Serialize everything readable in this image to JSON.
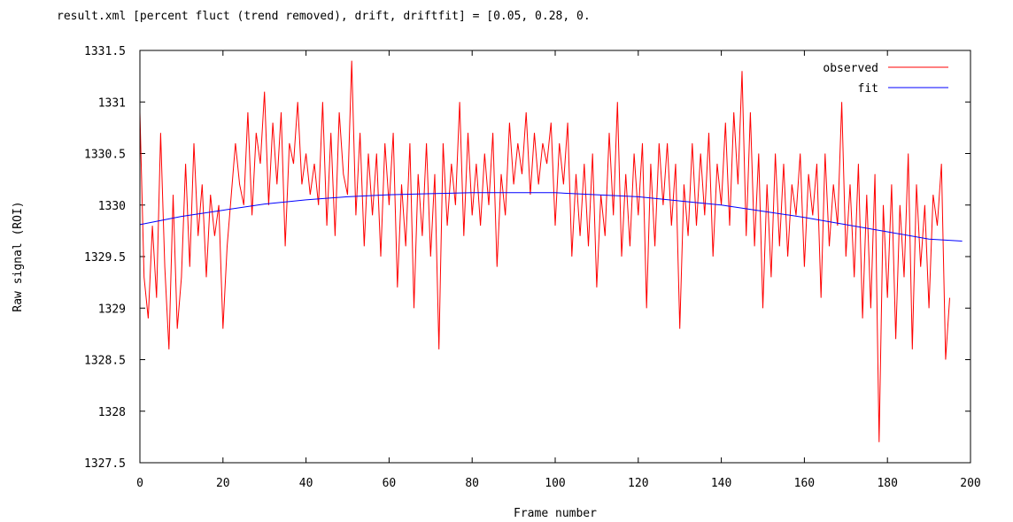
{
  "chart_data": {
    "type": "line",
    "title": "result.xml  [percent fluct (trend removed), drift, driftfit] = [0.05, 0.28, 0.",
    "xlabel": "Frame number",
    "ylabel": "Raw signal (ROI)",
    "xlim": [
      0,
      200
    ],
    "ylim": [
      1327.5,
      1331.5
    ],
    "x_ticks": [
      0,
      20,
      40,
      60,
      80,
      100,
      120,
      140,
      160,
      180,
      200
    ],
    "y_ticks": [
      1327.5,
      1328,
      1328.5,
      1329,
      1329.5,
      1330,
      1330.5,
      1331,
      1331.5
    ],
    "x_tick_labels": [
      "0",
      "20",
      "40",
      "60",
      "80",
      "100",
      "120",
      "140",
      "160",
      "180",
      "200"
    ],
    "y_tick_labels": [
      "1327.5",
      "1328",
      "1328.5",
      "1329",
      "1329.5",
      "1330",
      "1330.5",
      "1331",
      "1331.5"
    ],
    "grid": false,
    "legend_position": "top-right",
    "series": [
      {
        "name": "observed",
        "color": "#ff0000",
        "values": [
          1330.9,
          1329.3,
          1328.9,
          1329.8,
          1329.1,
          1330.7,
          1329.4,
          1328.6,
          1330.1,
          1328.8,
          1329.3,
          1330.4,
          1329.4,
          1330.6,
          1329.7,
          1330.2,
          1329.3,
          1330.1,
          1329.7,
          1330.0,
          1328.8,
          1329.6,
          1330.1,
          1330.6,
          1330.2,
          1330.0,
          1330.9,
          1329.9,
          1330.7,
          1330.4,
          1331.1,
          1330.0,
          1330.8,
          1330.2,
          1330.9,
          1329.6,
          1330.6,
          1330.4,
          1331.0,
          1330.2,
          1330.5,
          1330.1,
          1330.4,
          1330.0,
          1331.0,
          1329.8,
          1330.7,
          1329.7,
          1330.9,
          1330.3,
          1330.1,
          1331.4,
          1329.9,
          1330.7,
          1329.6,
          1330.5,
          1329.9,
          1330.5,
          1329.5,
          1330.6,
          1330.0,
          1330.7,
          1329.2,
          1330.2,
          1329.6,
          1330.6,
          1329.0,
          1330.3,
          1329.7,
          1330.6,
          1329.5,
          1330.3,
          1328.6,
          1330.6,
          1329.8,
          1330.4,
          1330.0,
          1331.0,
          1329.7,
          1330.7,
          1329.9,
          1330.4,
          1329.8,
          1330.5,
          1330.0,
          1330.7,
          1329.4,
          1330.3,
          1329.9,
          1330.8,
          1330.2,
          1330.6,
          1330.3,
          1330.9,
          1330.1,
          1330.7,
          1330.2,
          1330.6,
          1330.4,
          1330.8,
          1329.8,
          1330.6,
          1330.2,
          1330.8,
          1329.5,
          1330.3,
          1329.7,
          1330.4,
          1329.6,
          1330.5,
          1329.2,
          1330.1,
          1329.7,
          1330.7,
          1329.9,
          1331.0,
          1329.5,
          1330.3,
          1329.6,
          1330.5,
          1329.9,
          1330.6,
          1329.0,
          1330.4,
          1329.6,
          1330.6,
          1330.0,
          1330.6,
          1329.8,
          1330.4,
          1328.8,
          1330.2,
          1329.7,
          1330.6,
          1329.8,
          1330.5,
          1329.9,
          1330.7,
          1329.5,
          1330.4,
          1330.0,
          1330.8,
          1329.8,
          1330.9,
          1330.2,
          1331.3,
          1329.7,
          1330.9,
          1329.6,
          1330.5,
          1329.0,
          1330.2,
          1329.3,
          1330.5,
          1329.6,
          1330.4,
          1329.5,
          1330.2,
          1329.9,
          1330.5,
          1329.4,
          1330.3,
          1329.9,
          1330.4,
          1329.1,
          1330.5,
          1329.6,
          1330.2,
          1329.8,
          1331.0,
          1329.5,
          1330.2,
          1329.3,
          1330.4,
          1328.9,
          1330.1,
          1329.0,
          1330.3,
          1327.7,
          1330.0,
          1329.1,
          1330.2,
          1328.7,
          1330.0,
          1329.3,
          1330.5,
          1328.6,
          1330.2,
          1329.4,
          1330.0,
          1329.0,
          1330.1,
          1329.8,
          1330.4,
          1328.5,
          1329.1
        ],
        "x_start": 0
      },
      {
        "name": "fit",
        "color": "#0000ff",
        "x": [
          0,
          10,
          20,
          30,
          40,
          50,
          60,
          70,
          80,
          90,
          100,
          110,
          120,
          130,
          140,
          150,
          160,
          170,
          180,
          190,
          198
        ],
        "values": [
          1329.81,
          1329.89,
          1329.95,
          1330.01,
          1330.05,
          1330.08,
          1330.1,
          1330.11,
          1330.12,
          1330.12,
          1330.12,
          1330.1,
          1330.08,
          1330.04,
          1330.0,
          1329.94,
          1329.88,
          1329.81,
          1329.74,
          1329.67,
          1329.65
        ]
      }
    ]
  }
}
